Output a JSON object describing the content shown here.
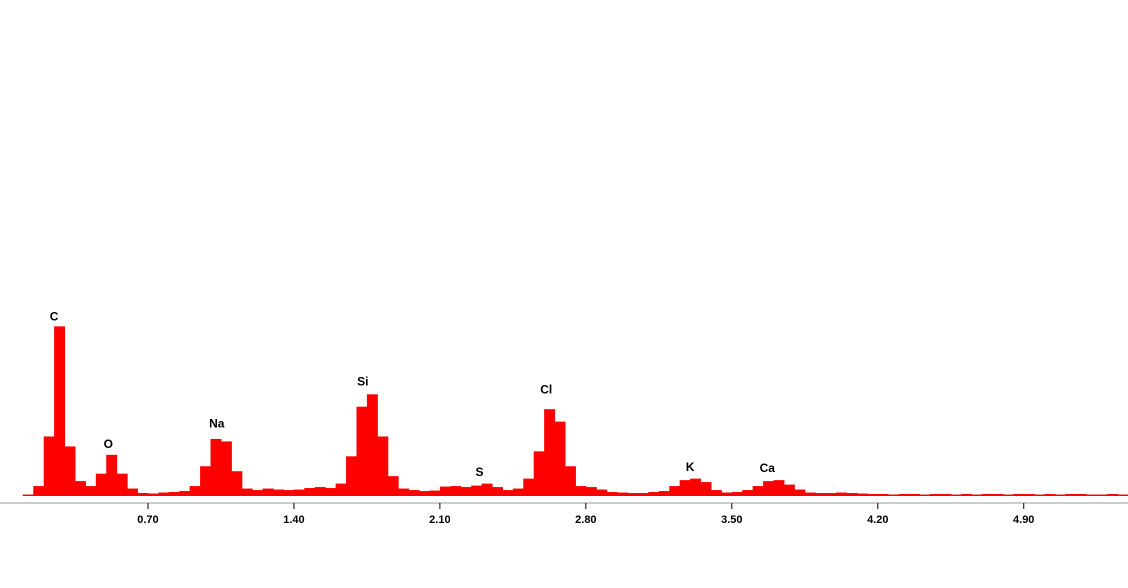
{
  "chart_data": {
    "type": "histogram",
    "color": "#ff0000",
    "bins": [
      0,
      0.05,
      0.1,
      0.15,
      0.2,
      0.25,
      0.3,
      0.35,
      0.4,
      0.45,
      0.5,
      0.55,
      0.6,
      0.65,
      0.7,
      0.75,
      0.8,
      0.85,
      0.9,
      0.95,
      1.0,
      1.05,
      1.1,
      1.15,
      1.2,
      1.25,
      1.3,
      1.35,
      1.4,
      1.45,
      1.5,
      1.55,
      1.6,
      1.65,
      1.7,
      1.75,
      1.8,
      1.85,
      1.9,
      1.95,
      2.0,
      2.05,
      2.1,
      2.15,
      2.2,
      2.25,
      2.3,
      2.35,
      2.4,
      2.45,
      2.5,
      2.55,
      2.6,
      2.65,
      2.7,
      2.75,
      2.8,
      2.85,
      2.9,
      2.95,
      3.0,
      3.05,
      3.1,
      3.15,
      3.2,
      3.25,
      3.3,
      3.35,
      3.4,
      3.45,
      3.5,
      3.55,
      3.6,
      3.65,
      3.7,
      3.75,
      3.8,
      3.85,
      3.9,
      3.95,
      4.0,
      4.05,
      4.1,
      4.15,
      4.2,
      4.25,
      4.3,
      4.35,
      4.4,
      4.45,
      4.5,
      4.55,
      4.6,
      4.65,
      4.7,
      4.75,
      4.8,
      4.85,
      4.9,
      4.95,
      5.0,
      5.05,
      5.1,
      5.15,
      5.2,
      5.25,
      5.3,
      5.35,
      5.4
    ],
    "values": [
      0,
      0,
      0.3,
      2,
      12,
      34.2,
      10,
      3,
      2,
      4.5,
      8.3,
      4.5,
      1.5,
      0.6,
      0.5,
      0.7,
      0.8,
      1,
      2,
      6,
      11.5,
      11,
      5,
      1.5,
      1.2,
      1.5,
      1.3,
      1.2,
      1.3,
      1.6,
      1.8,
      1.6,
      2.5,
      8,
      18,
      20.5,
      12,
      4,
      1.5,
      1.2,
      1,
      1.1,
      1.9,
      2,
      1.8,
      2.1,
      2.5,
      1.8,
      1.2,
      1.5,
      3.5,
      9,
      17.5,
      15,
      6,
      2,
      1.8,
      1.3,
      0.8,
      0.7,
      0.6,
      0.6,
      0.8,
      1,
      2,
      3.2,
      3.5,
      2.8,
      1.2,
      0.7,
      0.8,
      1.2,
      2,
      3,
      3.2,
      2.3,
      1.3,
      0.7,
      0.6,
      0.6,
      0.7,
      0.6,
      0.5,
      0.4,
      0.4,
      0.3,
      0.4,
      0.4,
      0.3,
      0.4,
      0.4,
      0.3,
      0.4,
      0.3,
      0.4,
      0.4,
      0.3,
      0.4,
      0.4,
      0.3,
      0.4,
      0.3,
      0.4,
      0.4,
      0.3,
      0.3,
      0.4,
      0.3
    ],
    "xlim": [
      0,
      5.4
    ],
    "ylim": [
      0,
      100
    ],
    "xticks": [
      {
        "value": 0.7,
        "label": "0.70"
      },
      {
        "value": 1.4,
        "label": "1.40"
      },
      {
        "value": 2.1,
        "label": "2.10"
      },
      {
        "value": 2.8,
        "label": "2.80"
      },
      {
        "value": 3.5,
        "label": "3.50"
      },
      {
        "value": 4.2,
        "label": "4.20"
      },
      {
        "value": 4.9,
        "label": "4.90"
      }
    ],
    "annotations": [
      {
        "text": "C",
        "x": 0.25,
        "y": 36
      },
      {
        "text": "O",
        "x": 0.51,
        "y": 10.3
      },
      {
        "text": "Na",
        "x": 1.03,
        "y": 14.4
      },
      {
        "text": "Si",
        "x": 1.73,
        "y": 22.9
      },
      {
        "text": "S",
        "x": 2.29,
        "y": 4.7
      },
      {
        "text": "Cl",
        "x": 2.61,
        "y": 21.3
      },
      {
        "text": "K",
        "x": 3.3,
        "y": 5.7
      },
      {
        "text": "Ca",
        "x": 3.67,
        "y": 5.5
      }
    ]
  }
}
